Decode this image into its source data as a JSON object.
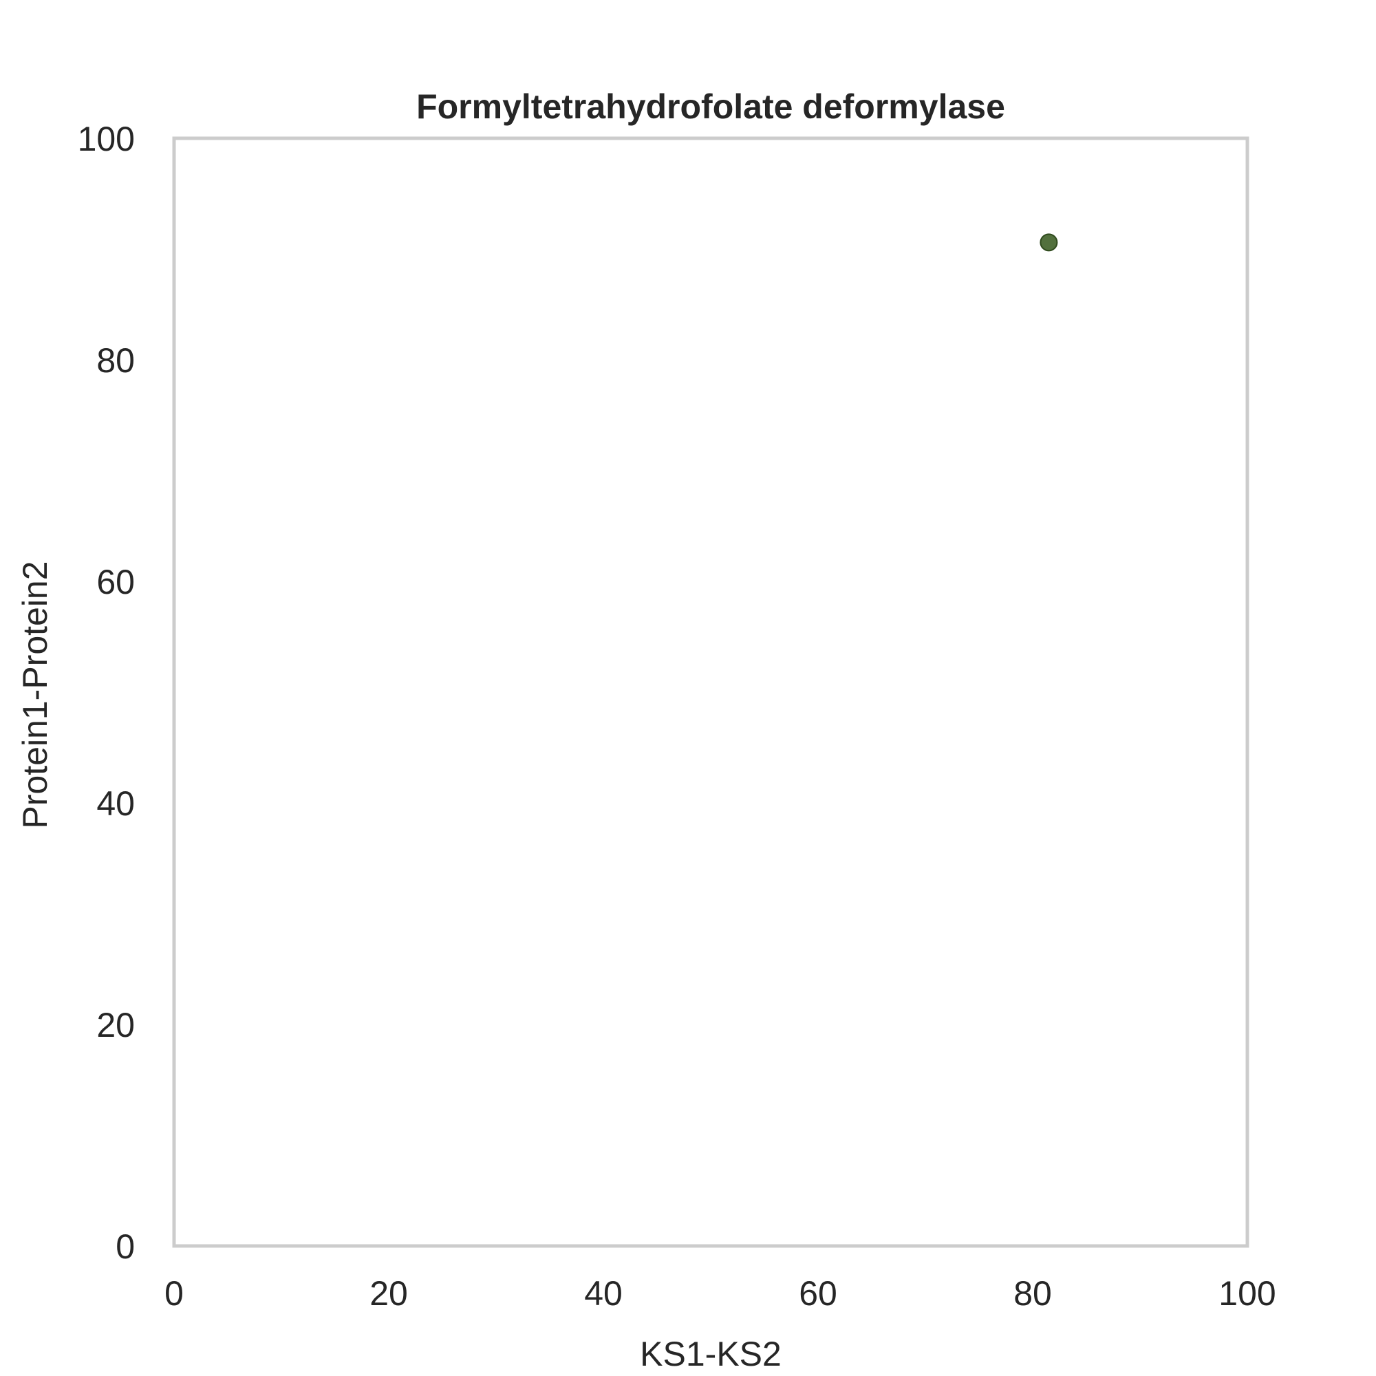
{
  "chart_data": {
    "type": "scatter",
    "title": "Formyltetrahydrofolate deformylase",
    "xlabel": "KS1-KS2",
    "ylabel": "Protein1-Protein2",
    "xlim": [
      0,
      100
    ],
    "ylim": [
      0,
      100
    ],
    "xticks": [
      0,
      20,
      40,
      60,
      80,
      100
    ],
    "yticks": [
      0,
      20,
      40,
      60,
      80,
      100
    ],
    "grid": false,
    "series": [
      {
        "points": [
          {
            "x": 81.5,
            "y": 90.6
          }
        ],
        "color": "#3f6128"
      }
    ],
    "frame_color": "#cccccc"
  }
}
